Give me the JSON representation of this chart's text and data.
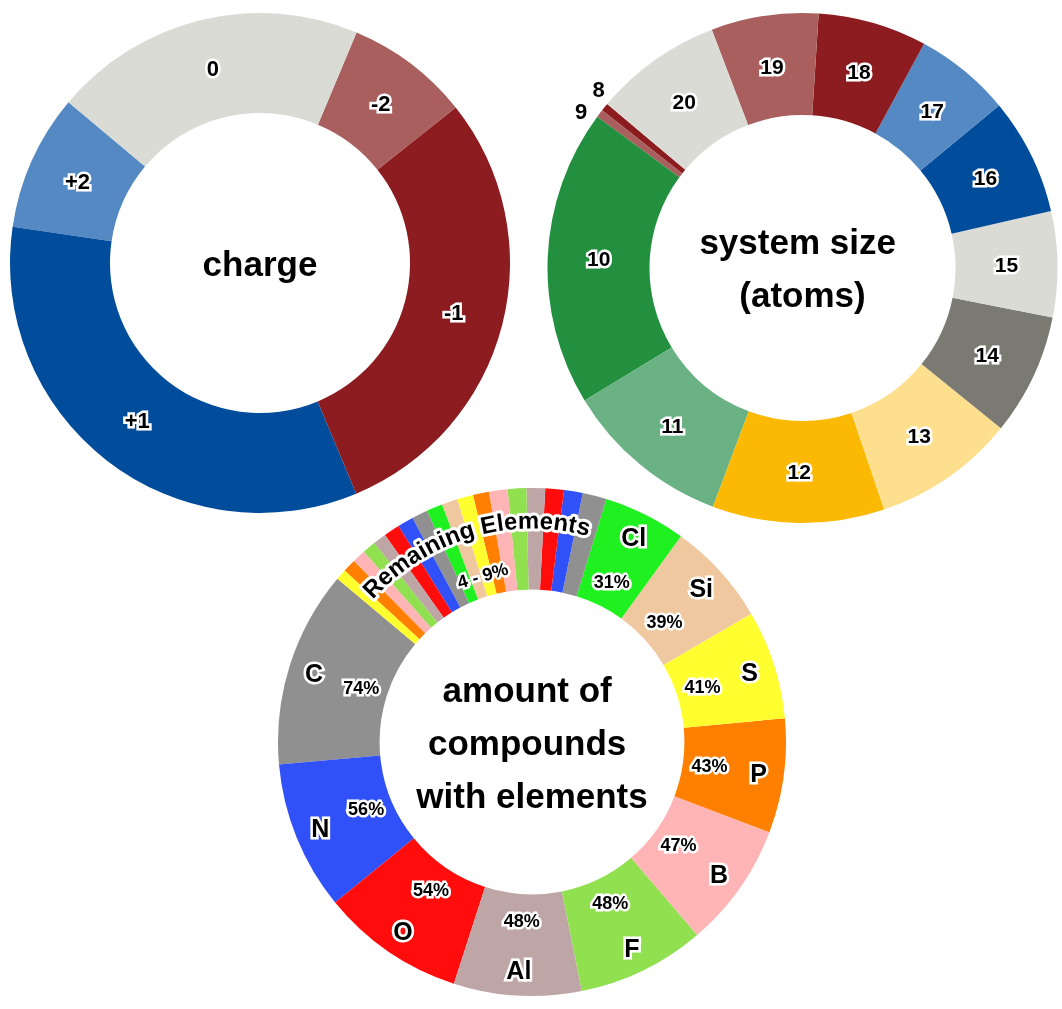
{
  "chart_data": [
    {
      "type": "donut",
      "title": "charge",
      "categories": [
        "+2",
        "+1",
        "-1",
        "-2",
        "0"
      ],
      "values": [
        8.8,
        33.6,
        29.4,
        8,
        20.2
      ],
      "colors": [
        "#5589c4",
        "#014d9c",
        "#8c1c1f",
        "#a85f5d",
        "#dbdbd6"
      ]
    },
    {
      "type": "donut",
      "title": "system size (atoms)",
      "categories": [
        "8",
        "9",
        "10",
        "11",
        "12",
        "13",
        "14",
        "15",
        "16",
        "17",
        "18",
        "19",
        "20"
      ],
      "values": [
        0.5,
        0.5,
        18.8,
        10.6,
        10.9,
        9.0,
        7.7,
        6.7,
        7.4,
        6.1,
        6.9,
        6.8,
        8.1
      ],
      "colors": [
        "#8c1c1f",
        "#a85f5d",
        "#22903f",
        "#6ab283",
        "#fbb904",
        "#fddf8e",
        "#7a7a72",
        "#dbdbd6",
        "#014d9c",
        "#5589c4",
        "#8c1c1f",
        "#a85f5d",
        "#dbdbd6"
      ]
    },
    {
      "type": "donut",
      "title": "amount of compounds with elements",
      "categories": [
        "C",
        "N",
        "O",
        "Al",
        "F",
        "B",
        "P",
        "S",
        "Si",
        "Cl",
        null,
        null,
        null,
        null,
        null,
        null,
        null,
        null,
        null,
        null,
        null,
        null,
        null,
        null,
        null,
        null,
        null,
        null
      ],
      "values": [
        74,
        56,
        54,
        48,
        48,
        47,
        43,
        41,
        39,
        31,
        9,
        7,
        7,
        7,
        7,
        7,
        6,
        6,
        6,
        6,
        6,
        6,
        6,
        5,
        5,
        5,
        5,
        4
      ],
      "value_labels": [
        "74%",
        "56%",
        "54%",
        "48%",
        "48%",
        "47%",
        "43%",
        "41%",
        "39%",
        "31%",
        null,
        null,
        null,
        null,
        null,
        null,
        null,
        null,
        null,
        null,
        null,
        null,
        null,
        null,
        null,
        null,
        null,
        null
      ],
      "colors": [
        "#909090",
        "#3050f8",
        "#ff0d0d",
        "#bfa6a6",
        "#90e050",
        "#ffb5b5",
        "#ff8000",
        "#ffff30",
        "#f0c8a0",
        "#1ff01f",
        "#909090",
        "#3050f8",
        "#ff0d0d",
        "#bfa6a6",
        "#90e050",
        "#ffb5b5",
        "#ff8000",
        "#ffff30",
        "#f0c8a0",
        "#1ff01f",
        "#909090",
        "#3050f8",
        "#ff0d0d",
        "#bfa6a6",
        "#90e050",
        "#ffb5b5",
        "#ff8000",
        "#ffff30"
      ],
      "annotations": [
        "Remaining Elements",
        "4 - 9%"
      ]
    }
  ]
}
